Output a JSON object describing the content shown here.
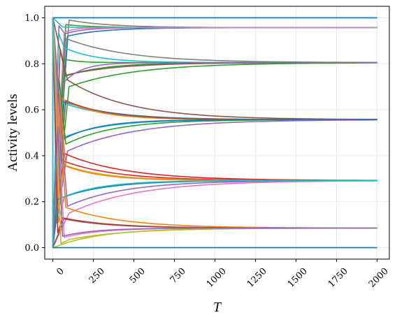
{
  "chart_data": {
    "type": "line",
    "title": "",
    "xlabel": "T",
    "ylabel": "Activity levels",
    "xlim": [
      -50,
      2075
    ],
    "ylim": [
      -0.05,
      1.05
    ],
    "x_ticks": [
      0,
      250,
      500,
      750,
      1000,
      1250,
      1500,
      1750,
      2000
    ],
    "x_tick_labels": [
      "0",
      "250",
      "500",
      "750",
      "1000",
      "1250",
      "1500",
      "1750",
      "2000"
    ],
    "y_ticks": [
      0.0,
      0.2,
      0.4,
      0.6,
      0.8,
      1.0
    ],
    "y_tick_labels": [
      "0.0",
      "0.2",
      "0.4",
      "0.6",
      "0.8",
      "1.0"
    ],
    "x_tick_rotation": 45,
    "grid": true,
    "legend": "none",
    "x_end": 2000,
    "steady_state_levels": [
      0.0,
      0.085,
      0.292,
      0.557,
      0.805,
      0.957,
      1.0
    ],
    "series": [
      {
        "color": "#17becf",
        "level": 1.0,
        "plateau": 1.0,
        "x_start": 0,
        "tau": 1
      },
      {
        "color": "#1f77b4",
        "level": 1.0,
        "plateau": 1.0,
        "x_start": 0,
        "tau": 1
      },
      {
        "color": "#7f7f7f",
        "level": 0.957,
        "plateau": 0.99,
        "x_start": 100,
        "tau": 260
      },
      {
        "color": "#9467bd",
        "level": 0.957,
        "plateau": 0.93,
        "x_start": 75,
        "tau": 120
      },
      {
        "color": "#1f77b4",
        "level": 0.957,
        "plateau": 0.92,
        "x_start": 90,
        "tau": 220
      },
      {
        "color": "#2ca02c",
        "level": 0.957,
        "plateau": 0.97,
        "x_start": 80,
        "tau": 180
      },
      {
        "color": "#17becf",
        "level": 0.957,
        "plateau": 0.96,
        "x_start": 60,
        "tau": 90
      },
      {
        "color": "#e377c2",
        "level": 0.957,
        "plateau": 0.935,
        "x_start": 70,
        "tau": 60
      },
      {
        "color": "#7f7f7f",
        "level": 0.805,
        "plateau": 0.91,
        "x_start": 80,
        "tau": 380
      },
      {
        "color": "#17becf",
        "level": 0.805,
        "plateau": 0.87,
        "x_start": 70,
        "tau": 200
      },
      {
        "color": "#2ca02c",
        "level": 0.805,
        "plateau": 0.82,
        "x_start": 70,
        "tau": 90
      },
      {
        "color": "#2ca02c",
        "level": 0.805,
        "plateau": 0.745,
        "x_start": 75,
        "tau": 240
      },
      {
        "color": "#8c564b",
        "level": 0.805,
        "plateau": 0.75,
        "x_start": 80,
        "tau": 320
      },
      {
        "color": "#2ca02c",
        "level": 0.805,
        "plateau": 0.7,
        "x_start": 100,
        "tau": 420
      },
      {
        "color": "#9467bd",
        "level": 0.805,
        "plateau": 0.72,
        "x_start": 70,
        "tau": 110
      },
      {
        "color": "#8c564b",
        "level": 0.557,
        "plateau": 0.73,
        "x_start": 90,
        "tau": 380
      },
      {
        "color": "#1f77b4",
        "level": 0.557,
        "plateau": 0.635,
        "x_start": 70,
        "tau": 300
      },
      {
        "color": "#17becf",
        "level": 0.557,
        "plateau": 0.63,
        "x_start": 60,
        "tau": 280
      },
      {
        "color": "#ff7f0e",
        "level": 0.557,
        "plateau": 0.655,
        "x_start": 40,
        "tau": 220
      },
      {
        "color": "#8c564b",
        "level": 0.557,
        "plateau": 0.64,
        "x_start": 80,
        "tau": 260
      },
      {
        "color": "#17becf",
        "level": 0.557,
        "plateau": 0.48,
        "x_start": 70,
        "tau": 260
      },
      {
        "color": "#2ca02c",
        "level": 0.557,
        "plateau": 0.45,
        "x_start": 80,
        "tau": 300
      },
      {
        "color": "#9467bd",
        "level": 0.557,
        "plateau": 0.42,
        "x_start": 90,
        "tau": 420
      },
      {
        "color": "#1f77b4",
        "level": 0.557,
        "plateau": 0.47,
        "x_start": 60,
        "tau": 220
      },
      {
        "color": "#d62728",
        "level": 0.292,
        "plateau": 0.39,
        "x_start": 20,
        "tau": 320
      },
      {
        "color": "#d62728",
        "level": 0.292,
        "plateau": 0.41,
        "x_start": 70,
        "tau": 380
      },
      {
        "color": "#bcbd22",
        "level": 0.292,
        "plateau": 0.36,
        "x_start": 70,
        "tau": 260
      },
      {
        "color": "#ff7f0e",
        "level": 0.292,
        "plateau": 0.355,
        "x_start": 80,
        "tau": 230
      },
      {
        "color": "#ff7f0e",
        "level": 0.292,
        "plateau": 0.22,
        "x_start": 70,
        "tau": 260
      },
      {
        "color": "#1f77b4",
        "level": 0.292,
        "plateau": 0.21,
        "x_start": 30,
        "tau": 280
      },
      {
        "color": "#9467bd",
        "level": 0.292,
        "plateau": 0.18,
        "x_start": 90,
        "tau": 350
      },
      {
        "color": "#e377c2",
        "level": 0.292,
        "plateau": 0.15,
        "x_start": 100,
        "tau": 420
      },
      {
        "color": "#17becf",
        "level": 0.292,
        "plateau": 0.215,
        "x_start": 50,
        "tau": 240
      },
      {
        "color": "#ff7f0e",
        "level": 0.085,
        "plateau": 0.175,
        "x_start": 80,
        "tau": 350
      },
      {
        "color": "#d62728",
        "level": 0.085,
        "plateau": 0.13,
        "x_start": 60,
        "tau": 300
      },
      {
        "color": "#8c564b",
        "level": 0.085,
        "plateau": 0.125,
        "x_start": 70,
        "tau": 280
      },
      {
        "color": "#e377c2",
        "level": 0.085,
        "plateau": 0.045,
        "x_start": 70,
        "tau": 220
      },
      {
        "color": "#bcbd22",
        "level": 0.085,
        "plateau": 0.02,
        "x_start": 80,
        "tau": 300
      },
      {
        "color": "#bcbd22",
        "level": 0.085,
        "plateau": 0.035,
        "x_start": 100,
        "tau": 360
      },
      {
        "color": "#9467bd",
        "level": 0.085,
        "plateau": 0.05,
        "x_start": 60,
        "tau": 200
      },
      {
        "color": "#17becf",
        "level": 0.0,
        "plateau": 0.0,
        "x_start": 0,
        "tau": 1
      },
      {
        "color": "#1f77b4",
        "level": 0.0,
        "plateau": 0.0,
        "x_start": 0,
        "tau": 1
      }
    ]
  }
}
